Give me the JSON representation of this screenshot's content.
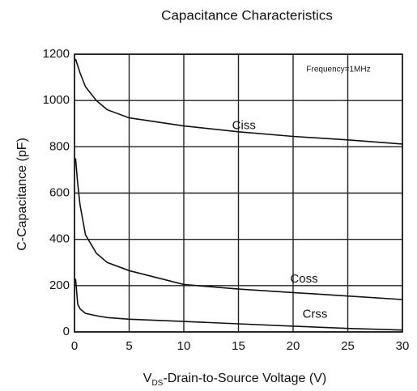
{
  "chart_data": {
    "type": "line",
    "title": "Capacitance Characteristics",
    "xlabel": [
      "V",
      "DS",
      "-Drain-to-Source Voltage (V)"
    ],
    "ylabel": "C-Capacitance (pF)",
    "x": [
      0.1,
      0.3,
      0.5,
      1,
      2,
      3,
      5,
      10,
      15,
      20,
      25,
      30
    ],
    "series": [
      {
        "name": "Ciss",
        "color": "#111111",
        "values": [
          1180,
          1150,
          1120,
          1060,
          1000,
          960,
          925,
          890,
          865,
          845,
          830,
          812
        ]
      },
      {
        "name": "Coss",
        "color": "#111111",
        "values": [
          750,
          640,
          550,
          420,
          340,
          300,
          265,
          205,
          185,
          170,
          155,
          140
        ]
      },
      {
        "name": "Crss",
        "color": "#111111",
        "values": [
          230,
          120,
          100,
          80,
          70,
          62,
          55,
          45,
          35,
          25,
          15,
          8
        ]
      }
    ],
    "annotation": "Frequency=1MHz",
    "xlim": [
      0,
      30
    ],
    "xticks": [
      0,
      5,
      10,
      15,
      20,
      25,
      30
    ],
    "ylim": [
      0,
      1200
    ],
    "yticks": [
      0,
      200,
      400,
      600,
      800,
      1000,
      1200
    ],
    "grid": true
  }
}
